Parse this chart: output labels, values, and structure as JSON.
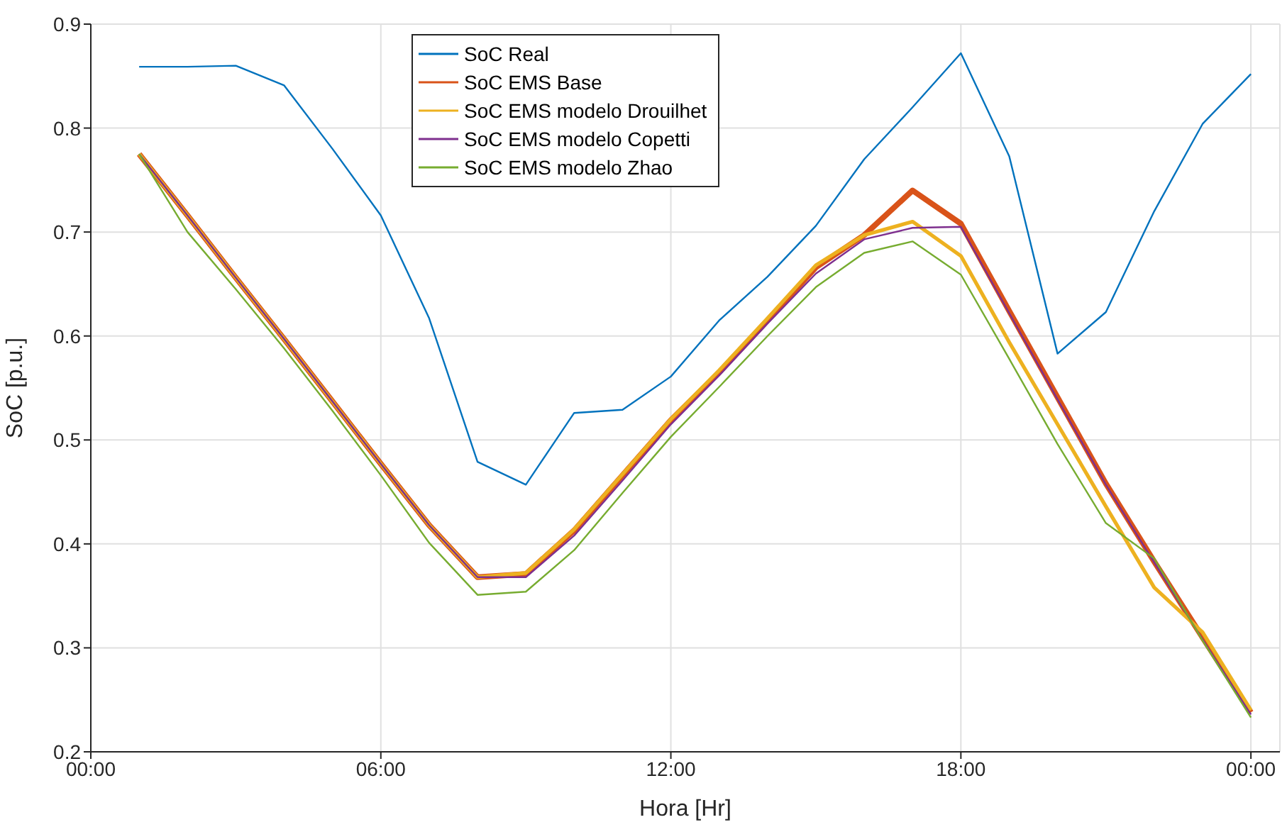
{
  "chart_data": {
    "type": "line",
    "xlabel": "Hora [Hr]",
    "ylabel": "SoC [p.u.]",
    "x": [
      1,
      2,
      3,
      4,
      5,
      6,
      7,
      8,
      9,
      10,
      11,
      12,
      13,
      14,
      15,
      16,
      17,
      18,
      19,
      20,
      21,
      22,
      23,
      24
    ],
    "xlim": [
      0,
      24.6
    ],
    "xticks": [
      {
        "value": 0,
        "label": "00:00"
      },
      {
        "value": 6,
        "label": "06:00"
      },
      {
        "value": 12,
        "label": "12:00"
      },
      {
        "value": 18,
        "label": "18:00"
      },
      {
        "value": 24,
        "label": "00:00"
      }
    ],
    "ylim": [
      0.2,
      0.9
    ],
    "yticks": [
      0.2,
      0.3,
      0.4,
      0.5,
      0.6,
      0.7,
      0.8,
      0.9
    ],
    "grid": true,
    "legend": "top",
    "marker": "none",
    "line_style": "solid",
    "series": [
      {
        "name": "SoC Real",
        "color": "#0072bd",
        "values": [
          0.859,
          0.859,
          0.86,
          0.841,
          0.78,
          0.716,
          0.617,
          0.479,
          0.457,
          0.526,
          0.529,
          0.561,
          0.615,
          0.657,
          0.706,
          0.77,
          0.82,
          0.872,
          0.773,
          0.583,
          0.623,
          0.72,
          0.804,
          0.852
        ]
      },
      {
        "name": "SoC EMS Base",
        "color": "#d95319",
        "values": [
          0.775,
          0.716,
          0.656,
          0.597,
          0.537,
          0.477,
          0.418,
          0.368,
          0.371,
          0.413,
          0.466,
          0.519,
          0.565,
          0.615,
          0.666,
          0.697,
          0.74,
          0.708,
          0.624,
          0.541,
          0.458,
          0.383,
          0.31,
          0.238
        ]
      },
      {
        "name": "SoC EMS modelo Drouilhet",
        "color": "#edb120",
        "values": [
          0.775,
          0.716,
          0.656,
          0.597,
          0.537,
          0.477,
          0.418,
          0.368,
          0.372,
          0.414,
          0.467,
          0.52,
          0.567,
          0.617,
          0.668,
          0.697,
          0.71,
          0.677,
          0.594,
          0.515,
          0.436,
          0.358,
          0.315,
          0.24
        ]
      },
      {
        "name": "SoC EMS modelo Copetti",
        "color": "#7e2f8e",
        "values": [
          0.775,
          0.716,
          0.656,
          0.597,
          0.537,
          0.477,
          0.418,
          0.368,
          0.368,
          0.408,
          0.461,
          0.515,
          0.562,
          0.612,
          0.66,
          0.693,
          0.704,
          0.705,
          0.622,
          0.539,
          0.457,
          0.382,
          0.308,
          0.236
        ]
      },
      {
        "name": "SoC EMS modelo Zhao",
        "color": "#77ac30",
        "values": [
          0.775,
          0.7,
          0.645,
          0.588,
          0.528,
          0.466,
          0.401,
          0.351,
          0.354,
          0.394,
          0.449,
          0.503,
          0.551,
          0.6,
          0.647,
          0.68,
          0.691,
          0.659,
          0.578,
          0.496,
          0.42,
          0.386,
          0.307,
          0.233
        ]
      }
    ]
  }
}
